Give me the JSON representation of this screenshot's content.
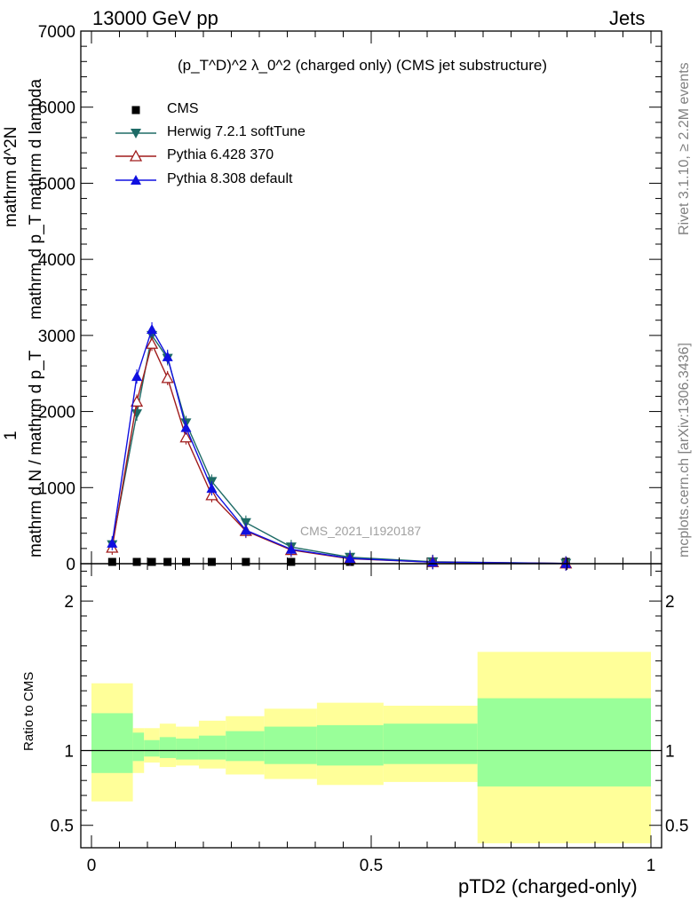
{
  "header": {
    "left": "13000 GeV pp",
    "right": "Jets",
    "side_top": "Rivet 3.1.10, ≥ 2.2M events",
    "side_bottom": "mcplots.cern.ch [arXiv:1306.3436]"
  },
  "analysis_label": "CMS_2021_I1920187",
  "colors": {
    "cms": "#000000",
    "herwig": "#1e6b66",
    "pythia6": "#a01c1c",
    "pythia8": "#1010e0",
    "band_inner": "#99ff99",
    "band_outer": "#ffff99"
  },
  "chart_data": [
    {
      "type": "line",
      "title": "(p_T^D)^2 λ_0^2 (charged only) (CMS jet substructure)",
      "ylabel_top": "mathrm d^2N",
      "ylabel_top2": "mathrm d p_T mathrm d lambda",
      "ylabel_frac1": "1",
      "ylabel_frac2": "mathrm d N / mathrm d p_T",
      "xlim": [
        0,
        1
      ],
      "ylim": [
        0,
        7000
      ],
      "yticks": [
        0,
        1000,
        2000,
        3000,
        4000,
        5000,
        6000,
        7000
      ],
      "ytick_labels": [
        "0",
        "1000",
        "2000",
        "3000",
        "4000",
        "5000",
        "6000",
        "7000"
      ],
      "x": [
        0.037,
        0.081,
        0.108,
        0.136,
        0.169,
        0.215,
        0.276,
        0.357,
        0.462,
        0.61,
        0.848
      ],
      "series": [
        {
          "name": "CMS",
          "marker": "square",
          "values": [
            7,
            8,
            9,
            9,
            8,
            6,
            4,
            2,
            1,
            0.3,
            0.1
          ]
        },
        {
          "name": "Herwig 7.2.1 softTune",
          "marker": "triangle-down",
          "values": [
            250,
            1970,
            3000,
            2700,
            1850,
            1080,
            540,
            220,
            85,
            25,
            4
          ]
        },
        {
          "name": "Pythia 6.428 370",
          "marker": "triangle-up-open",
          "values": [
            210,
            2130,
            2890,
            2440,
            1660,
            900,
            430,
            180,
            65,
            20,
            3
          ]
        },
        {
          "name": "Pythia 8.308 default",
          "marker": "triangle-up",
          "values": [
            270,
            2460,
            3080,
            2720,
            1790,
            990,
            440,
            190,
            70,
            20,
            3
          ]
        }
      ]
    },
    {
      "type": "area",
      "ylabel": "Ratio to CMS",
      "xlabel": "pTD2 (charged-only)",
      "xlim": [
        0,
        1
      ],
      "ylim": [
        0.35,
        2.25
      ],
      "yticks": [
        0.5,
        1,
        2
      ],
      "ytick_labels": [
        "0.5",
        "1",
        "2"
      ],
      "xticks": [
        0,
        0.5,
        1
      ],
      "xtick_labels": [
        "0",
        "0.5",
        "1"
      ],
      "bin_edges": [
        0.0,
        0.074,
        0.094,
        0.122,
        0.151,
        0.192,
        0.24,
        0.309,
        0.403,
        0.522,
        0.69,
        1.0
      ],
      "inner_band_low": [
        0.85,
        0.93,
        0.96,
        0.95,
        0.94,
        0.94,
        0.93,
        0.91,
        0.9,
        0.91,
        0.76
      ],
      "inner_band_high": [
        1.25,
        1.12,
        1.07,
        1.09,
        1.08,
        1.1,
        1.13,
        1.16,
        1.17,
        1.18,
        1.35
      ],
      "outer_band_low": [
        0.66,
        0.85,
        0.92,
        0.89,
        0.9,
        0.88,
        0.84,
        0.81,
        0.77,
        0.79,
        0.38
      ],
      "outer_band_high": [
        1.45,
        1.15,
        1.15,
        1.18,
        1.16,
        1.2,
        1.23,
        1.28,
        1.32,
        1.3,
        1.66
      ]
    }
  ]
}
